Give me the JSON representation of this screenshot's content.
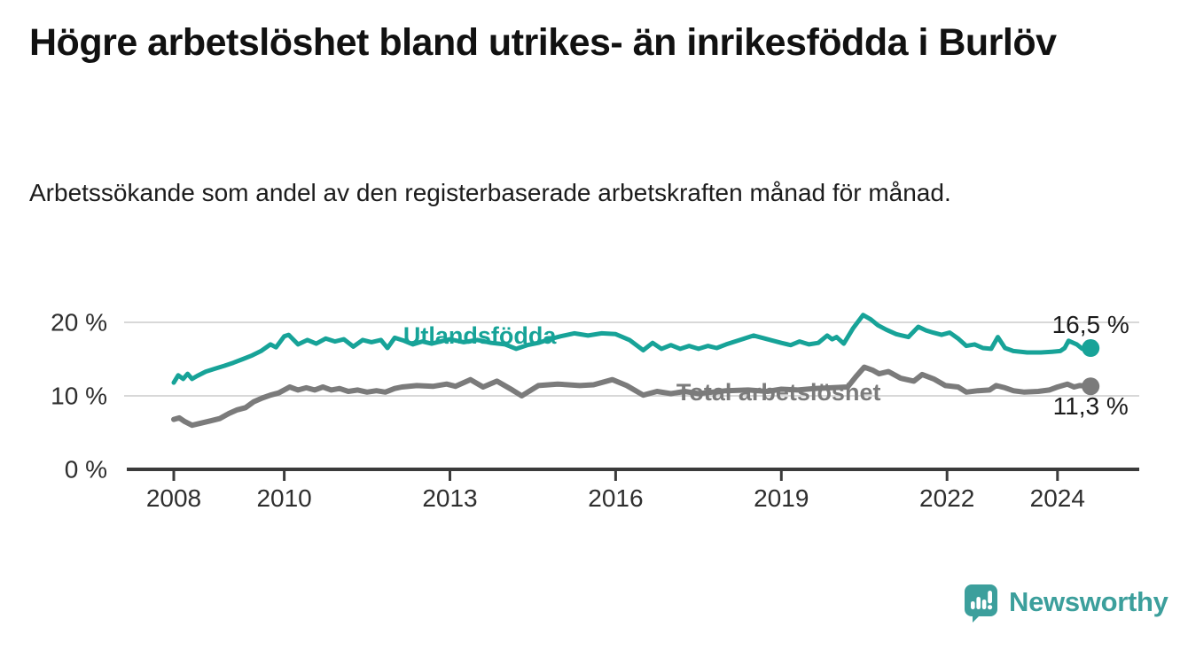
{
  "title": "Högre arbetslöshet bland utrikes- än inrikesfödda i Burlöv",
  "subtitle": "Arbetssökande som andel av den registerbaserade arbetskraften månad för månad.",
  "branding": {
    "logo_text": "Newsworthy",
    "logo_icon": "bar-chart-speech-bubble-icon",
    "logo_color": "#3c9f9c"
  },
  "colors": {
    "background": "#ffffff",
    "title_text": "#111111",
    "axis": "#3b3b3b",
    "axis_text": "#2e2e2e",
    "gridline": "#d8d8d8",
    "accent_teal": "#17a398",
    "accent_gray": "#7b7b7b",
    "annotation_text": "#1a1a1a"
  },
  "chart_data": {
    "type": "line",
    "title": "Högre arbetslöshet bland utrikes- än inrikesfödda i Burlöv",
    "subtitle": "Arbetssökande som andel av den registerbaserade arbetskraften månad för månad.",
    "xlabel": "",
    "ylabel": "",
    "grid": "horizontal",
    "legend_position": "inline-labels-on-lines",
    "x_axis": {
      "unit": "year",
      "tick_values": [
        2008,
        2010,
        2013,
        2016,
        2019,
        2022,
        2024
      ],
      "tick_labels": [
        "2008",
        "2010",
        "2013",
        "2016",
        "2019",
        "2022",
        "2024"
      ],
      "range_years": [
        2007.15,
        2025.5
      ]
    },
    "y_axis": {
      "unit": "percent",
      "tick_values": [
        0,
        10,
        20
      ],
      "tick_labels": [
        "0 %",
        "10 %",
        "20 %"
      ],
      "range": [
        0,
        25.3
      ]
    },
    "series": [
      {
        "name": "Utlandsfödda",
        "color": "#17a398",
        "line_width": 5,
        "label_anchor": {
          "year": 2013.54,
          "value": 18.2
        },
        "end_value": 16.5,
        "end_label": "16,5 %",
        "end_label_position": "above",
        "points": [
          [
            2008.0,
            11.8
          ],
          [
            2008.08,
            12.8
          ],
          [
            2008.17,
            12.3
          ],
          [
            2008.25,
            13.0
          ],
          [
            2008.33,
            12.3
          ],
          [
            2008.42,
            12.7
          ],
          [
            2008.58,
            13.3
          ],
          [
            2008.75,
            13.7
          ],
          [
            2008.92,
            14.1
          ],
          [
            2009.08,
            14.5
          ],
          [
            2009.25,
            15.0
          ],
          [
            2009.42,
            15.5
          ],
          [
            2009.58,
            16.1
          ],
          [
            2009.75,
            17.0
          ],
          [
            2009.85,
            16.6
          ],
          [
            2010.0,
            18.1
          ],
          [
            2010.08,
            18.3
          ],
          [
            2010.25,
            17.0
          ],
          [
            2010.42,
            17.6
          ],
          [
            2010.58,
            17.1
          ],
          [
            2010.75,
            17.8
          ],
          [
            2010.92,
            17.4
          ],
          [
            2011.08,
            17.7
          ],
          [
            2011.25,
            16.7
          ],
          [
            2011.42,
            17.6
          ],
          [
            2011.58,
            17.3
          ],
          [
            2011.75,
            17.6
          ],
          [
            2011.87,
            16.5
          ],
          [
            2012.0,
            17.9
          ],
          [
            2012.17,
            17.5
          ],
          [
            2012.33,
            17.0
          ],
          [
            2012.5,
            17.4
          ],
          [
            2012.67,
            17.1
          ],
          [
            2012.83,
            17.4
          ],
          [
            2013.0,
            17.7
          ],
          [
            2013.25,
            17.3
          ],
          [
            2013.5,
            17.6
          ],
          [
            2013.75,
            17.2
          ],
          [
            2014.0,
            17.0
          ],
          [
            2014.2,
            16.4
          ],
          [
            2014.4,
            16.9
          ],
          [
            2014.6,
            17.2
          ],
          [
            2014.8,
            17.7
          ],
          [
            2015.0,
            18.1
          ],
          [
            2015.25,
            18.5
          ],
          [
            2015.5,
            18.2
          ],
          [
            2015.75,
            18.5
          ],
          [
            2016.0,
            18.4
          ],
          [
            2016.25,
            17.6
          ],
          [
            2016.5,
            16.2
          ],
          [
            2016.67,
            17.2
          ],
          [
            2016.83,
            16.4
          ],
          [
            2017.0,
            16.9
          ],
          [
            2017.17,
            16.4
          ],
          [
            2017.33,
            16.8
          ],
          [
            2017.5,
            16.4
          ],
          [
            2017.67,
            16.8
          ],
          [
            2017.83,
            16.5
          ],
          [
            2018.0,
            17.0
          ],
          [
            2018.25,
            17.6
          ],
          [
            2018.5,
            18.2
          ],
          [
            2018.75,
            17.7
          ],
          [
            2019.0,
            17.2
          ],
          [
            2019.17,
            16.9
          ],
          [
            2019.33,
            17.4
          ],
          [
            2019.5,
            17.0
          ],
          [
            2019.67,
            17.2
          ],
          [
            2019.83,
            18.2
          ],
          [
            2019.92,
            17.7
          ],
          [
            2020.0,
            18.0
          ],
          [
            2020.13,
            17.1
          ],
          [
            2020.3,
            19.2
          ],
          [
            2020.48,
            21.0
          ],
          [
            2020.62,
            20.4
          ],
          [
            2020.75,
            19.6
          ],
          [
            2020.9,
            19.0
          ],
          [
            2021.08,
            18.4
          ],
          [
            2021.3,
            18.0
          ],
          [
            2021.48,
            19.4
          ],
          [
            2021.62,
            18.9
          ],
          [
            2021.75,
            18.6
          ],
          [
            2021.9,
            18.3
          ],
          [
            2022.05,
            18.6
          ],
          [
            2022.2,
            17.8
          ],
          [
            2022.35,
            16.8
          ],
          [
            2022.5,
            17.0
          ],
          [
            2022.65,
            16.5
          ],
          [
            2022.8,
            16.4
          ],
          [
            2022.92,
            18.0
          ],
          [
            2023.05,
            16.5
          ],
          [
            2023.2,
            16.1
          ],
          [
            2023.45,
            15.9
          ],
          [
            2023.7,
            15.9
          ],
          [
            2023.9,
            16.0
          ],
          [
            2024.05,
            16.1
          ],
          [
            2024.13,
            16.5
          ],
          [
            2024.2,
            17.5
          ],
          [
            2024.35,
            17.0
          ],
          [
            2024.45,
            16.4
          ],
          [
            2024.6,
            16.5
          ]
        ]
      },
      {
        "name": "Total arbetslöshet",
        "color": "#7b7b7b",
        "line_width": 6,
        "label_anchor": {
          "year": 2018.95,
          "value": 10.5
        },
        "end_value": 11.3,
        "end_label": "11,3 %",
        "end_label_position": "below",
        "points": [
          [
            2008.0,
            6.8
          ],
          [
            2008.1,
            7.0
          ],
          [
            2008.2,
            6.5
          ],
          [
            2008.33,
            6.0
          ],
          [
            2008.5,
            6.3
          ],
          [
            2008.67,
            6.6
          ],
          [
            2008.83,
            6.9
          ],
          [
            2009.0,
            7.6
          ],
          [
            2009.15,
            8.1
          ],
          [
            2009.3,
            8.4
          ],
          [
            2009.45,
            9.2
          ],
          [
            2009.6,
            9.7
          ],
          [
            2009.75,
            10.1
          ],
          [
            2009.9,
            10.4
          ],
          [
            2010.1,
            11.2
          ],
          [
            2010.25,
            10.8
          ],
          [
            2010.4,
            11.1
          ],
          [
            2010.55,
            10.8
          ],
          [
            2010.7,
            11.2
          ],
          [
            2010.85,
            10.8
          ],
          [
            2011.0,
            11.0
          ],
          [
            2011.16,
            10.6
          ],
          [
            2011.33,
            10.8
          ],
          [
            2011.5,
            10.5
          ],
          [
            2011.67,
            10.7
          ],
          [
            2011.83,
            10.5
          ],
          [
            2012.0,
            11.0
          ],
          [
            2012.13,
            11.2
          ],
          [
            2012.4,
            11.4
          ],
          [
            2012.7,
            11.3
          ],
          [
            2012.94,
            11.6
          ],
          [
            2013.1,
            11.3
          ],
          [
            2013.37,
            12.2
          ],
          [
            2013.6,
            11.2
          ],
          [
            2013.85,
            12.0
          ],
          [
            2014.13,
            10.8
          ],
          [
            2014.3,
            10.0
          ],
          [
            2014.6,
            11.4
          ],
          [
            2014.95,
            11.6
          ],
          [
            2015.35,
            11.4
          ],
          [
            2015.6,
            11.5
          ],
          [
            2015.94,
            12.2
          ],
          [
            2016.2,
            11.4
          ],
          [
            2016.5,
            10.1
          ],
          [
            2016.75,
            10.6
          ],
          [
            2017.0,
            10.3
          ],
          [
            2017.25,
            10.6
          ],
          [
            2017.5,
            10.3
          ],
          [
            2017.75,
            10.5
          ],
          [
            2018.0,
            10.7
          ],
          [
            2018.4,
            10.8
          ],
          [
            2018.75,
            10.6
          ],
          [
            2019.0,
            10.9
          ],
          [
            2019.3,
            10.8
          ],
          [
            2019.6,
            11.0
          ],
          [
            2019.9,
            11.1
          ],
          [
            2020.2,
            11.2
          ],
          [
            2020.35,
            12.6
          ],
          [
            2020.5,
            13.9
          ],
          [
            2020.65,
            13.5
          ],
          [
            2020.77,
            13.0
          ],
          [
            2020.94,
            13.3
          ],
          [
            2021.16,
            12.4
          ],
          [
            2021.4,
            12.0
          ],
          [
            2021.55,
            12.9
          ],
          [
            2021.76,
            12.3
          ],
          [
            2021.97,
            11.4
          ],
          [
            2022.2,
            11.2
          ],
          [
            2022.35,
            10.5
          ],
          [
            2022.56,
            10.7
          ],
          [
            2022.77,
            10.8
          ],
          [
            2022.89,
            11.4
          ],
          [
            2023.05,
            11.1
          ],
          [
            2023.2,
            10.7
          ],
          [
            2023.4,
            10.5
          ],
          [
            2023.65,
            10.6
          ],
          [
            2023.85,
            10.8
          ],
          [
            2024.0,
            11.2
          ],
          [
            2024.18,
            11.6
          ],
          [
            2024.3,
            11.2
          ],
          [
            2024.4,
            11.4
          ],
          [
            2024.6,
            11.3
          ]
        ]
      }
    ]
  }
}
